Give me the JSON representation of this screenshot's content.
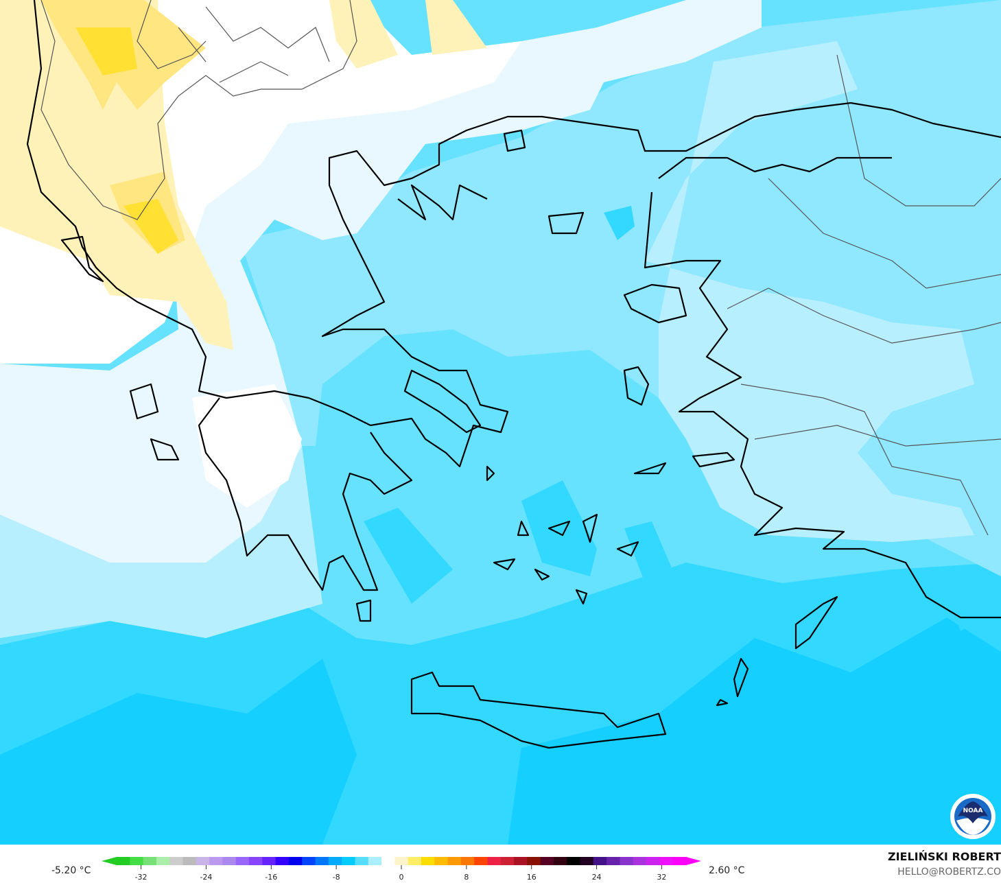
{
  "legend": {
    "min_value": "-5.20 °C",
    "max_value": "2.60 °C",
    "ticks": [
      "-32",
      "-24",
      "-16",
      "-8",
      "0",
      "8",
      "16",
      "24",
      "32"
    ],
    "tick_values": [
      -32,
      -24,
      -16,
      -8,
      0,
      8,
      16,
      24,
      32
    ],
    "range": [
      -35,
      35
    ],
    "colors": [
      "#22cc22",
      "#44dd44",
      "#77e077",
      "#aaeeaa",
      "#cccccc",
      "#bbbbbb",
      "#c8b4e6",
      "#bb99ee",
      "#aa88ee",
      "#9966ff",
      "#8844ff",
      "#6622ff",
      "#3300ff",
      "#0000ee",
      "#0044ff",
      "#0077ff",
      "#00aaff",
      "#00ccff",
      "#55ddff",
      "#aaeeff",
      "#ffffff",
      "#fff3cc",
      "#ffee66",
      "#ffdd00",
      "#ffbb00",
      "#ff9900",
      "#ff7700",
      "#ff4400",
      "#ee2244",
      "#cc2233",
      "#aa1122",
      "#881100",
      "#550022",
      "#330011",
      "#000000",
      "#220022",
      "#441188",
      "#6622aa",
      "#8833cc",
      "#aa33dd",
      "#cc22ee",
      "#ee11ff",
      "#ff00ff"
    ]
  },
  "credits": {
    "author": "ZIELIŃSKI ROBERT",
    "email": "HELLO@ROBERTZ.CO",
    "logo_text": "NOAA"
  },
  "map_colors": {
    "white": "#ffffff",
    "pale": "#e9f8ff",
    "light": "#b8efff",
    "mid": "#8fe8ff",
    "cyan": "#66e2ff",
    "deep": "#33d8ff",
    "deepest": "#14cfff",
    "yellow_pale": "#fff2b8",
    "yellow": "#ffe680",
    "yellow_strong": "#ffe033"
  }
}
